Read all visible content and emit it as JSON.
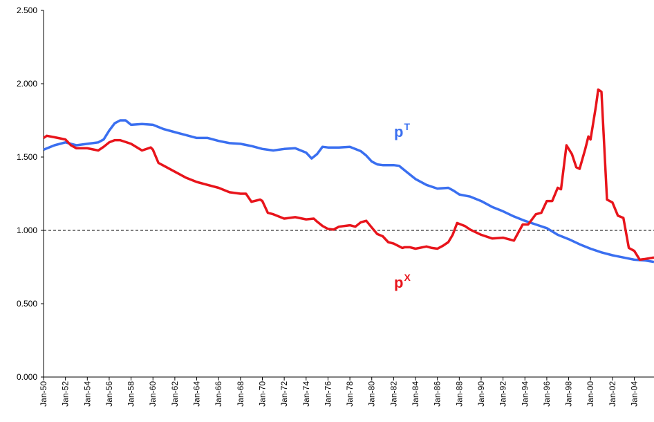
{
  "chart_data": {
    "type": "line",
    "xlim": [
      1950,
      2005.8
    ],
    "xticks": [
      {
        "value": 1950,
        "label": "Jan-50"
      },
      {
        "value": 1952,
        "label": "Jan-52"
      },
      {
        "value": 1954,
        "label": "Jan-54"
      },
      {
        "value": 1956,
        "label": "Jan-56"
      },
      {
        "value": 1958,
        "label": "Jan-58"
      },
      {
        "value": 1960,
        "label": "Jan-60"
      },
      {
        "value": 1962,
        "label": "Jan-62"
      },
      {
        "value": 1964,
        "label": "Jan-64"
      },
      {
        "value": 1966,
        "label": "Jan-66"
      },
      {
        "value": 1968,
        "label": "Jan-68"
      },
      {
        "value": 1970,
        "label": "Jan-70"
      },
      {
        "value": 1972,
        "label": "Jan-72"
      },
      {
        "value": 1974,
        "label": "Jan-74"
      },
      {
        "value": 1976,
        "label": "Jan-76"
      },
      {
        "value": 1978,
        "label": "Jan-78"
      },
      {
        "value": 1980,
        "label": "Jan-80"
      },
      {
        "value": 1982,
        "label": "Jan-82"
      },
      {
        "value": 1984,
        "label": "Jan-84"
      },
      {
        "value": 1986,
        "label": "Jan-86"
      },
      {
        "value": 1988,
        "label": "Jan-88"
      },
      {
        "value": 1990,
        "label": "Jan-90"
      },
      {
        "value": 1992,
        "label": "Jan-92"
      },
      {
        "value": 1994,
        "label": "Jan-94"
      },
      {
        "value": 1996,
        "label": "Jan-96"
      },
      {
        "value": 1998,
        "label": "Jan-98"
      },
      {
        "value": 2000,
        "label": "Jan-00"
      },
      {
        "value": 2002,
        "label": "Jan-02"
      },
      {
        "value": 2004,
        "label": "Jan-04"
      }
    ],
    "ylim": [
      0,
      2.5
    ],
    "yticks": [
      {
        "value": 0,
        "label": "0.000"
      },
      {
        "value": 0.5,
        "label": "0.500"
      },
      {
        "value": 1,
        "label": "1.000"
      },
      {
        "value": 1.5,
        "label": "1.500"
      },
      {
        "value": 2,
        "label": "2.000"
      },
      {
        "value": 2.5,
        "label": "2.500"
      }
    ],
    "reference_line": 1,
    "series": [
      {
        "color": "#3a6ff0",
        "x": [
          1950,
          1951,
          1952,
          1953,
          1954,
          1955,
          1955.5,
          1956,
          1956.5,
          1957,
          1957.5,
          1958,
          1959,
          1960,
          1961,
          1962,
          1963,
          1964,
          1965,
          1966,
          1967,
          1968,
          1969,
          1970,
          1971,
          1972,
          1973,
          1974,
          1974.5,
          1975,
          1975.5,
          1976,
          1977,
          1978,
          1979,
          1979.5,
          1980,
          1980.5,
          1981,
          1982,
          1982.5,
          1983,
          1984,
          1985,
          1986,
          1987,
          1987.5,
          1988,
          1989,
          1990,
          1991,
          1992,
          1993,
          1994,
          1995,
          1996,
          1997,
          1998,
          1999,
          2000,
          2001,
          2002,
          2003,
          2004,
          2005,
          2005.8
        ],
        "values": [
          1.55,
          1.58,
          1.6,
          1.58,
          1.59,
          1.6,
          1.62,
          1.68,
          1.73,
          1.75,
          1.75,
          1.72,
          1.725,
          1.72,
          1.69,
          1.67,
          1.65,
          1.63,
          1.63,
          1.61,
          1.595,
          1.59,
          1.575,
          1.555,
          1.545,
          1.555,
          1.56,
          1.53,
          1.49,
          1.52,
          1.57,
          1.565,
          1.565,
          1.57,
          1.54,
          1.51,
          1.47,
          1.45,
          1.445,
          1.445,
          1.44,
          1.41,
          1.35,
          1.31,
          1.285,
          1.29,
          1.27,
          1.245,
          1.23,
          1.2,
          1.16,
          1.13,
          1.095,
          1.065,
          1.04,
          1.015,
          0.97,
          0.94,
          0.905,
          0.875,
          0.85,
          0.83,
          0.815,
          0.8,
          0.795,
          0.785
        ]
      },
      {
        "color": "#e8141b",
        "x": [
          1950,
          1950.3,
          1951,
          1952,
          1952.5,
          1953,
          1954,
          1955,
          1955.5,
          1956,
          1956.5,
          1957,
          1958,
          1959,
          1959.8,
          1960,
          1960.5,
          1961,
          1962,
          1963,
          1964,
          1965,
          1966,
          1967,
          1968,
          1968.5,
          1969,
          1969.8,
          1970,
          1970.5,
          1971,
          1972,
          1973,
          1974,
          1974.7,
          1975,
          1975.5,
          1976,
          1976.5,
          1977,
          1978,
          1978.5,
          1979,
          1979.5,
          1980,
          1980.5,
          1981,
          1981.5,
          1982,
          1982.8,
          1983,
          1983.5,
          1984,
          1985,
          1985.5,
          1986,
          1986.5,
          1987,
          1987.4,
          1987.8,
          1988.5,
          1989,
          1990,
          1991,
          1992,
          1992.5,
          1993,
          1993.8,
          1994.3,
          1995,
          1995.5,
          1996,
          1996.5,
          1997,
          1997.3,
          1997.8,
          1998.3,
          1998.7,
          1999,
          1999.5,
          1999.8,
          2000,
          2000.5,
          2000.7,
          2001,
          2001.5,
          2002,
          2002.5,
          2003,
          2003.5,
          2004,
          2004.5,
          2005,
          2005.8
        ],
        "values": [
          1.63,
          1.645,
          1.635,
          1.62,
          1.58,
          1.56,
          1.56,
          1.545,
          1.57,
          1.6,
          1.615,
          1.615,
          1.59,
          1.545,
          1.565,
          1.55,
          1.46,
          1.44,
          1.4,
          1.36,
          1.33,
          1.31,
          1.29,
          1.26,
          1.25,
          1.25,
          1.195,
          1.21,
          1.2,
          1.12,
          1.11,
          1.08,
          1.09,
          1.075,
          1.08,
          1.06,
          1.03,
          1.01,
          1.005,
          1.025,
          1.035,
          1.025,
          1.055,
          1.065,
          1.02,
          0.975,
          0.96,
          0.92,
          0.91,
          0.88,
          0.885,
          0.885,
          0.875,
          0.89,
          0.88,
          0.875,
          0.895,
          0.92,
          0.97,
          1.05,
          1.03,
          1.005,
          0.97,
          0.945,
          0.95,
          0.94,
          0.93,
          1.04,
          1.04,
          1.11,
          1.12,
          1.2,
          1.2,
          1.29,
          1.28,
          1.58,
          1.52,
          1.43,
          1.42,
          1.55,
          1.64,
          1.62,
          1.85,
          1.96,
          1.945,
          1.21,
          1.19,
          1.1,
          1.085,
          0.88,
          0.86,
          0.8,
          0.805,
          0.815
        ]
      }
    ],
    "annotations": [
      {
        "text": "p",
        "sup": "T",
        "color": "#3a6ff0"
      },
      {
        "text": "p",
        "sup": "X",
        "color": "#e8141b"
      }
    ]
  }
}
